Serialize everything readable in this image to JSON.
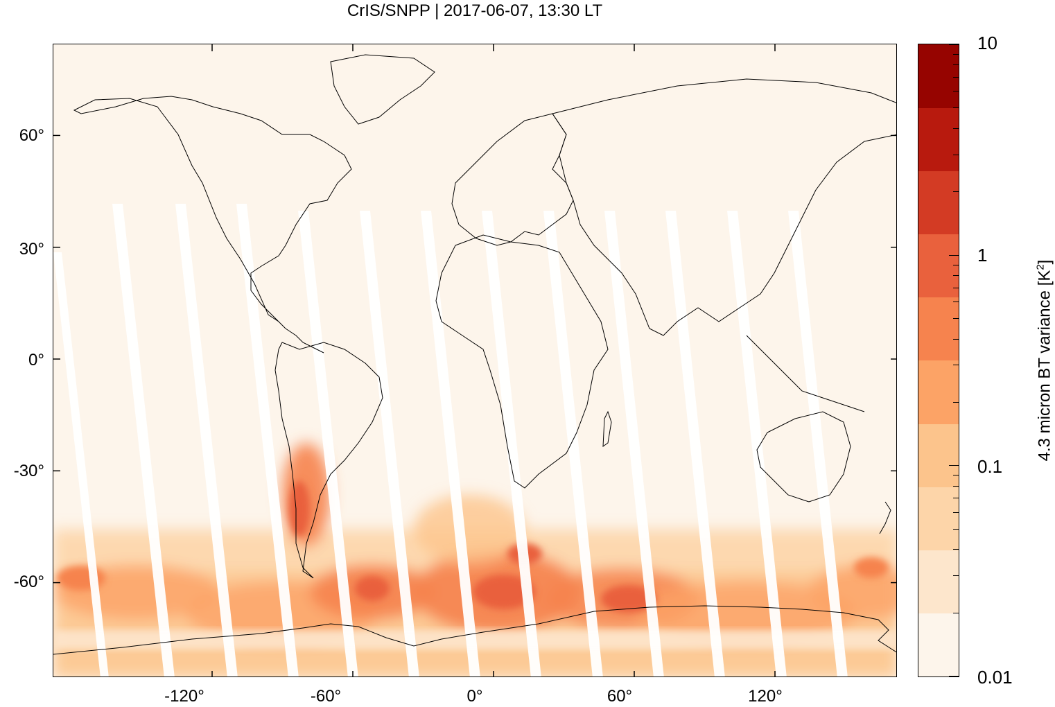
{
  "title": "CrIS/SNPP | 2017-06-07, 13:30 LT",
  "map": {
    "lon_range": [
      -180,
      180
    ],
    "lat_range": [
      -85,
      85
    ],
    "x_ticks": [
      "-120°",
      "-60°",
      "0°",
      "60°",
      "120°"
    ],
    "x_tick_values": [
      -120,
      -60,
      0,
      60,
      120
    ],
    "y_ticks": [
      "60°",
      "30°",
      "0°",
      "-30°",
      "-60°"
    ],
    "y_tick_values": [
      60,
      30,
      0,
      -30,
      -60
    ],
    "background_color": "#fdf5eb",
    "coastline_color": "#000000",
    "swath_gap_color": "#ffffff",
    "high_variance_region": "Southern Ocean / Southern Hemisphere mid-latitudes and southern Andes"
  },
  "colorbar": {
    "label_prefix": "4.3 micron BT variance [K",
    "label_sup": "2",
    "label_suffix": "]",
    "scale": "log",
    "range": [
      0.01,
      10
    ],
    "tick_labels": [
      "10",
      "1",
      "0.1",
      "0.01"
    ],
    "tick_values": [
      10,
      1,
      0.1,
      0.01
    ],
    "colors": [
      "#fdf5eb",
      "#fde6cc",
      "#fdd5a9",
      "#fcc48c",
      "#fca366",
      "#f6834e",
      "#e9613d",
      "#d33b24",
      "#b81a0e",
      "#960400"
    ]
  }
}
